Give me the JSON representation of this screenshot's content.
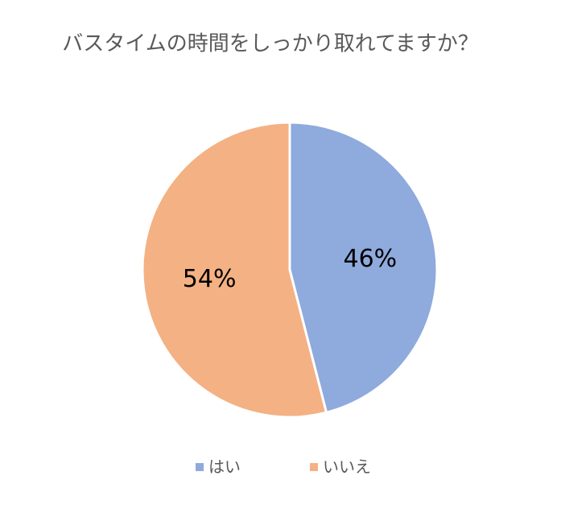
{
  "chart_data": {
    "type": "pie",
    "title": "バスタイムの時間をしっかり取れてますか？",
    "categories": [
      "はい",
      "いいえ"
    ],
    "values": [
      46,
      54
    ],
    "value_labels": [
      "46%",
      "54%"
    ],
    "colors": [
      "#8faadc",
      "#f4b183"
    ],
    "legend": "bottom"
  }
}
